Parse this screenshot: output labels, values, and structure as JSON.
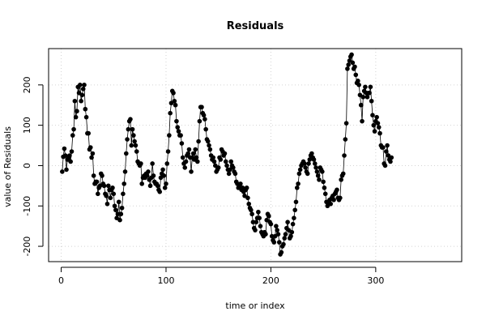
{
  "chart_data": {
    "type": "scatter",
    "title": "Residuals",
    "xlabel": "time or index",
    "ylabel": "value of Residuals",
    "xlim": [
      -12,
      382
    ],
    "ylim": [
      -238,
      290
    ],
    "xticks": [
      0,
      100,
      200,
      300
    ],
    "yticks": [
      -200,
      -100,
      0,
      100,
      200
    ],
    "grid": true,
    "connect_points": true,
    "point_color": "#000000",
    "line_color": "#000000",
    "grid_color": "#d3d3d3",
    "series": [
      {
        "values": [
          -15,
          22,
          42,
          25,
          -10,
          15,
          20,
          25,
          10,
          35,
          75,
          90,
          160,
          120,
          135,
          195,
          180,
          200,
          160,
          175,
          190,
          200,
          140,
          120,
          80,
          80,
          40,
          45,
          20,
          30,
          -25,
          -45,
          -40,
          -40,
          -70,
          -55,
          -50,
          -20,
          -25,
          -45,
          -50,
          -70,
          -75,
          -95,
          -50,
          -60,
          -80,
          -60,
          -55,
          -70,
          -100,
          -110,
          -130,
          -120,
          -90,
          -135,
          -120,
          -105,
          -70,
          -45,
          -15,
          30,
          65,
          90,
          110,
          115,
          50,
          90,
          75,
          60,
          50,
          35,
          10,
          5,
          0,
          5,
          -45,
          -30,
          -25,
          -30,
          -20,
          -25,
          -15,
          -35,
          -50,
          -30,
          5,
          -25,
          -40,
          -45,
          -45,
          -50,
          -60,
          -65,
          -30,
          -20,
          -10,
          -25,
          -55,
          -45,
          5,
          35,
          75,
          130,
          155,
          185,
          180,
          160,
          150,
          110,
          95,
          85,
          75,
          75,
          55,
          20,
          5,
          -5,
          10,
          25,
          30,
          40,
          20,
          -15,
          20,
          30,
          15,
          40,
          20,
          10,
          60,
          110,
          145,
          145,
          130,
          125,
          115,
          90,
          65,
          60,
          50,
          40,
          25,
          15,
          20,
          10,
          0,
          -15,
          -10,
          -5,
          20,
          15,
          40,
          35,
          25,
          30,
          10,
          0,
          -10,
          -20,
          -10,
          10,
          0,
          -5,
          -15,
          -20,
          -40,
          -45,
          -55,
          -50,
          -45,
          -60,
          -55,
          -65,
          -75,
          -60,
          -55,
          -80,
          -95,
          -105,
          -110,
          -120,
          -140,
          -155,
          -160,
          -140,
          -130,
          -115,
          -130,
          -150,
          -165,
          -170,
          -175,
          -165,
          -170,
          -135,
          -120,
          -125,
          -140,
          -145,
          -175,
          -185,
          -190,
          -175,
          -150,
          -160,
          -170,
          -190,
          -220,
          -215,
          -200,
          -195,
          -180,
          -170,
          -155,
          -140,
          -160,
          -180,
          -175,
          -165,
          -145,
          -130,
          -110,
          -90,
          -55,
          -45,
          -20,
          -10,
          0,
          5,
          10,
          5,
          -5,
          -15,
          -20,
          5,
          15,
          25,
          30,
          20,
          15,
          5,
          -5,
          -15,
          -25,
          -35,
          -5,
          -10,
          -15,
          -40,
          -55,
          -70,
          -90,
          -100,
          -90,
          -85,
          -95,
          -80,
          -75,
          -85,
          -70,
          -65,
          -60,
          -80,
          -85,
          -80,
          -35,
          -25,
          -20,
          25,
          65,
          105,
          240,
          250,
          260,
          270,
          275,
          255,
          240,
          245,
          225,
          205,
          210,
          200,
          175,
          150,
          110,
          170,
          185,
          195,
          180,
          170,
          180,
          180,
          195,
          160,
          125,
          100,
          85,
          110,
          120,
          105,
          95,
          80,
          50,
          45,
          45,
          5,
          0,
          35,
          50,
          25,
          15,
          10,
          20
        ]
      }
    ]
  }
}
